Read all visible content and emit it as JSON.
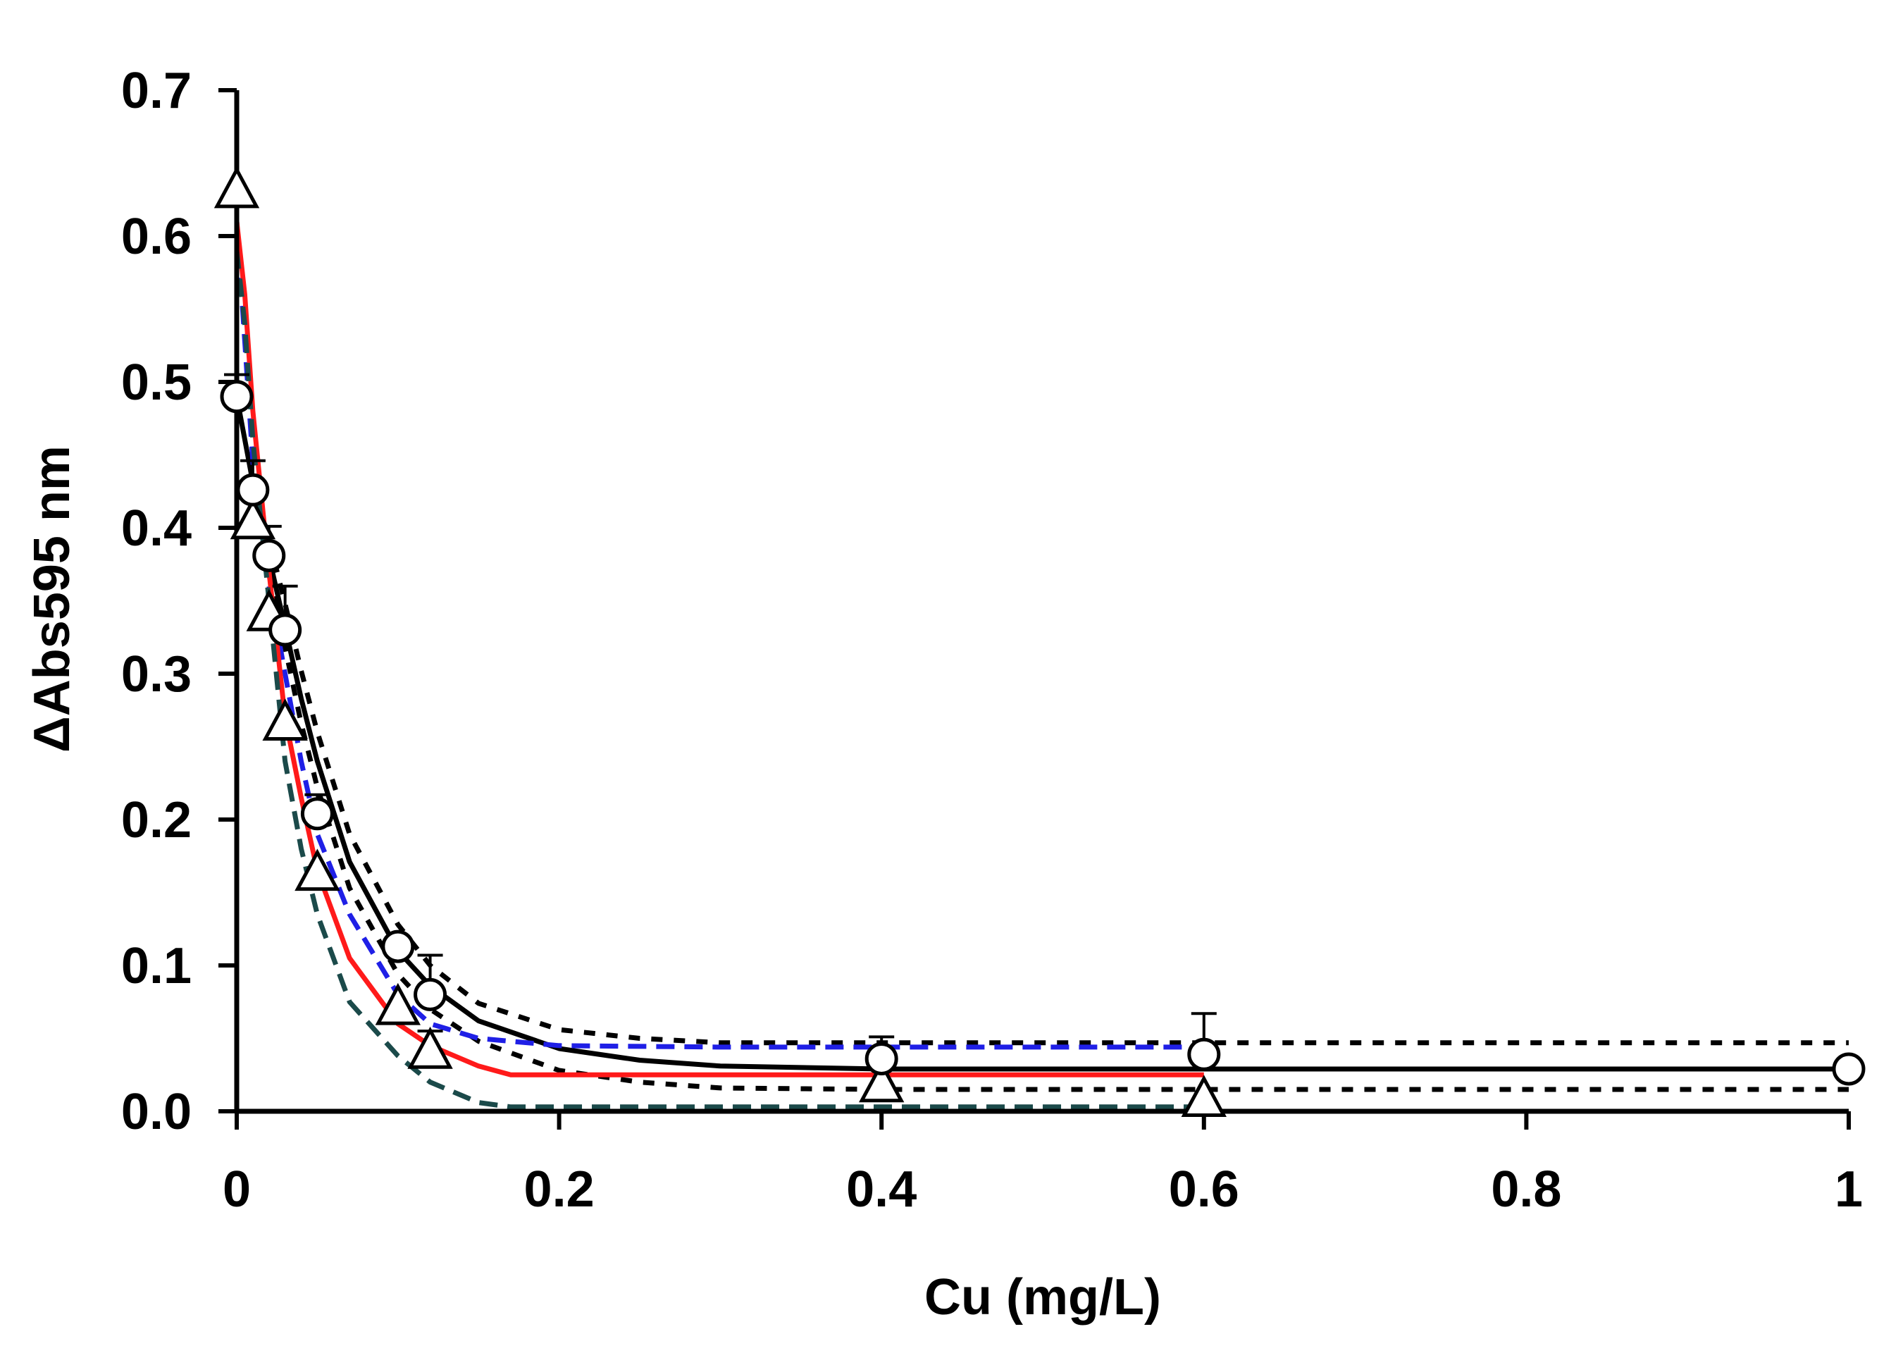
{
  "chart_data": {
    "type": "scatter",
    "title": "",
    "xlabel": "Cu (mg/L)",
    "ylabel": "ΔAbs595 nm",
    "xlim": [
      0,
      1
    ],
    "ylim": [
      0,
      0.7
    ],
    "grid": false,
    "x_ticks": [
      {
        "value": 0,
        "label": "0"
      },
      {
        "value": 0.2,
        "label": "0.2"
      },
      {
        "value": 0.4,
        "label": "0.4"
      },
      {
        "value": 0.6,
        "label": "0.6"
      },
      {
        "value": 0.8,
        "label": "0.8"
      },
      {
        "value": 1,
        "label": "1"
      }
    ],
    "y_ticks": [
      {
        "value": 0,
        "label": "0.0"
      },
      {
        "value": 0.1,
        "label": "0.1"
      },
      {
        "value": 0.2,
        "label": "0.2"
      },
      {
        "value": 0.3,
        "label": "0.3"
      },
      {
        "value": 0.4,
        "label": "0.4"
      },
      {
        "value": 0.5,
        "label": "0.5"
      },
      {
        "value": 0.6,
        "label": "0.6"
      },
      {
        "value": 0.7,
        "label": "0.7"
      }
    ],
    "point_series": [
      {
        "name": "circles",
        "marker": "circle",
        "x": [
          0,
          0.01,
          0.02,
          0.03,
          0.05,
          0.1,
          0.12,
          0.4,
          0.6,
          1.0
        ],
        "y": [
          0.49,
          0.426,
          0.381,
          0.33,
          0.204,
          0.113,
          0.08,
          0.036,
          0.039,
          0.029
        ],
        "err": [
          0.015,
          0.02,
          0.02,
          0.03,
          0.013,
          0.005,
          0.027,
          0.015,
          0.028,
          0
        ]
      },
      {
        "name": "triangles",
        "marker": "triangle",
        "x": [
          0,
          0.01,
          0.02,
          0.03,
          0.05,
          0.1,
          0.12,
          0.4,
          0.6
        ],
        "y": [
          0.63,
          0.403,
          0.34,
          0.265,
          0.162,
          0.07,
          0.04,
          0.017,
          0.007
        ],
        "err": [
          0,
          0,
          0,
          0,
          0,
          0,
          0.015,
          0,
          0
        ]
      }
    ],
    "curve_series": [
      {
        "name": "black fit",
        "color": "#000000",
        "style": "solid",
        "x": [
          0,
          0.01,
          0.02,
          0.03,
          0.04,
          0.05,
          0.07,
          0.1,
          0.12,
          0.15,
          0.2,
          0.25,
          0.3,
          0.4,
          0.6,
          1.0
        ],
        "y": [
          0.49,
          0.431,
          0.38,
          0.332,
          0.283,
          0.24,
          0.171,
          0.11,
          0.086,
          0.062,
          0.043,
          0.035,
          0.031,
          0.029,
          0.029,
          0.029
        ]
      },
      {
        "name": "black upper band",
        "color": "#000000",
        "style": "dotted",
        "x": [
          0.02,
          0.03,
          0.04,
          0.05,
          0.07,
          0.1,
          0.12,
          0.15,
          0.2,
          0.25,
          0.3,
          0.4,
          0.6,
          1.0
        ],
        "y": [
          0.392,
          0.348,
          0.302,
          0.26,
          0.19,
          0.128,
          0.1,
          0.074,
          0.056,
          0.05,
          0.047,
          0.047,
          0.047,
          0.047
        ]
      },
      {
        "name": "black lower band",
        "color": "#000000",
        "style": "dotted",
        "x": [
          0.02,
          0.03,
          0.04,
          0.05,
          0.07,
          0.1,
          0.12,
          0.15,
          0.2,
          0.25,
          0.3,
          0.4,
          0.6,
          1.0
        ],
        "y": [
          0.368,
          0.318,
          0.266,
          0.222,
          0.153,
          0.094,
          0.07,
          0.048,
          0.028,
          0.02,
          0.016,
          0.015,
          0.015,
          0.015
        ]
      },
      {
        "name": "blue dashed",
        "color": "#1f1fe6",
        "style": "dashed",
        "x": [
          0,
          0.01,
          0.02,
          0.03,
          0.04,
          0.05,
          0.07,
          0.1,
          0.12,
          0.15,
          0.2,
          0.3,
          0.4,
          0.6
        ],
        "y": [
          0.61,
          0.445,
          0.36,
          0.3,
          0.24,
          0.19,
          0.135,
          0.08,
          0.06,
          0.05,
          0.045,
          0.044,
          0.044,
          0.044
        ]
      },
      {
        "name": "red fit",
        "color": "#ff1a1a",
        "style": "solid",
        "x": [
          0,
          0.005,
          0.01,
          0.02,
          0.025,
          0.03,
          0.04,
          0.05,
          0.07,
          0.1,
          0.12,
          0.15,
          0.17,
          0.2,
          0.3,
          0.4,
          0.6
        ],
        "y": [
          0.61,
          0.56,
          0.48,
          0.37,
          0.32,
          0.27,
          0.215,
          0.165,
          0.105,
          0.06,
          0.045,
          0.031,
          0.025,
          0.025,
          0.025,
          0.025,
          0.025
        ]
      },
      {
        "name": "dark teal dashed",
        "color": "#1b4a4a",
        "style": "dashed",
        "x": [
          0,
          0.005,
          0.01,
          0.02,
          0.03,
          0.04,
          0.05,
          0.07,
          0.1,
          0.12,
          0.15,
          0.17,
          0.2,
          0.4,
          0.6
        ],
        "y": [
          0.59,
          0.54,
          0.46,
          0.35,
          0.24,
          0.18,
          0.135,
          0.075,
          0.038,
          0.02,
          0.006,
          0.003,
          0.003,
          0.003,
          0.003
        ]
      }
    ]
  }
}
